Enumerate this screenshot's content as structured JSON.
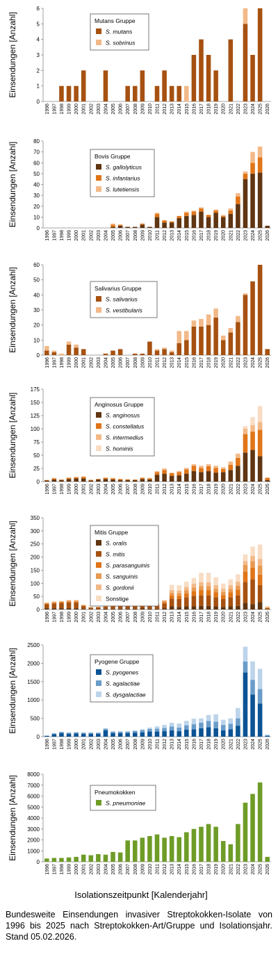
{
  "x_axis_label": "Isolationszeitpunkt [Kalenderjahr]",
  "caption": "Bundesweite Einsendungen invasiver Streptokokken-Isolate von 1996 bis 2025 nach Streptokokken-Art/Gruppe und Isolationsjahr. Stand 05.02.2026.",
  "chart_data": [
    {
      "type": "bar",
      "stacked": true,
      "ylabel": "Einsendungen [Anzahl]",
      "ylim": [
        0,
        6
      ],
      "yticks": [
        0,
        1,
        2,
        3,
        4,
        5,
        6
      ],
      "legend_title": "Mutans Gruppe",
      "legend_placement": "top-left",
      "categories": [
        "1996",
        "1997",
        "1998",
        "1999",
        "2000",
        "2001",
        "2002",
        "2003",
        "2004",
        "2005",
        "2006",
        "2007",
        "2008",
        "2009",
        "2010",
        "2011",
        "2012",
        "2013",
        "2014",
        "2015",
        "2016",
        "2017",
        "2018",
        "2019",
        "2020",
        "2021",
        "2022",
        "2023",
        "2024",
        "2025",
        "2026"
      ],
      "series": [
        {
          "name": "S. mutans",
          "color": "#a65111",
          "values": [
            0,
            0,
            1,
            1,
            1,
            2,
            0,
            0,
            2,
            0,
            0,
            1,
            1,
            2,
            0,
            1,
            2,
            1,
            1,
            0,
            3,
            4,
            3,
            2,
            0,
            4,
            0,
            5,
            3,
            6,
            0
          ]
        },
        {
          "name": "S. sobrinus",
          "color": "#f2b988",
          "values": [
            0,
            0,
            0,
            0,
            0,
            0,
            0,
            0,
            0,
            0,
            0,
            0,
            0,
            0,
            0,
            0,
            0,
            0,
            0,
            1,
            0,
            0,
            0,
            0,
            0,
            0,
            0,
            1,
            0,
            0,
            0
          ]
        }
      ]
    },
    {
      "type": "bar",
      "stacked": true,
      "ylabel": "Einsendungen [Anzahl]",
      "ylim": [
        0,
        80
      ],
      "yticks": [
        0,
        10,
        20,
        30,
        40,
        50,
        60,
        70,
        80
      ],
      "legend_title": "Bovis Gruppe",
      "legend_placement": "top-left",
      "categories": [
        "1996",
        "1997",
        "1998",
        "1999",
        "2000",
        "2001",
        "2002",
        "2003",
        "2004",
        "2005",
        "2006",
        "2007",
        "2008",
        "2009",
        "2010",
        "2011",
        "2012",
        "2013",
        "2014",
        "2015",
        "2016",
        "2017",
        "2018",
        "2019",
        "2020",
        "2021",
        "2022",
        "2023",
        "2024",
        "2025",
        "2026"
      ],
      "series": [
        {
          "name": "S. gallolyticus",
          "color": "#5f3512",
          "values": [
            0,
            0,
            0,
            0,
            0,
            0,
            0,
            0,
            0,
            1,
            2,
            1,
            1,
            3,
            1,
            10,
            5,
            5,
            9,
            11,
            12,
            15,
            10,
            14,
            10,
            13,
            22,
            45,
            50,
            51,
            2
          ]
        },
        {
          "name": "S. infantarius",
          "color": "#e07518",
          "values": [
            0,
            0,
            0,
            0,
            0,
            0,
            0,
            0,
            0,
            2,
            1,
            0,
            0,
            1,
            0,
            3,
            2,
            1,
            2,
            3,
            3,
            3,
            2,
            2,
            1,
            3,
            7,
            5,
            10,
            14,
            0
          ]
        },
        {
          "name": "S. lutetiensis",
          "color": "#f2b988",
          "values": [
            0,
            0,
            0,
            0,
            0,
            0,
            0,
            0,
            0,
            1,
            0,
            0,
            0,
            0,
            0,
            1,
            0,
            0,
            0,
            1,
            1,
            1,
            0,
            1,
            1,
            2,
            3,
            2,
            10,
            10,
            0
          ]
        }
      ]
    },
    {
      "type": "bar",
      "stacked": true,
      "ylabel": "Einsendungen [Anzahl]",
      "ylim": [
        0,
        60
      ],
      "yticks": [
        0,
        10,
        20,
        30,
        40,
        50,
        60
      ],
      "legend_title": "Salivarius Gruppe",
      "legend_placement": "top-left",
      "categories": [
        "1996",
        "1997",
        "1998",
        "1999",
        "2000",
        "2001",
        "2002",
        "2003",
        "2004",
        "2005",
        "2006",
        "2007",
        "2008",
        "2009",
        "2010",
        "2011",
        "2012",
        "2013",
        "2014",
        "2015",
        "2016",
        "2017",
        "2018",
        "2019",
        "2020",
        "2021",
        "2022",
        "2023",
        "2024",
        "2025",
        "2026"
      ],
      "series": [
        {
          "name": "S. salivarius",
          "color": "#a65111",
          "values": [
            3,
            2,
            0,
            7,
            5,
            4,
            0,
            0,
            1,
            3,
            4,
            0,
            1,
            1,
            9,
            3,
            4,
            2,
            8,
            10,
            19,
            19,
            20,
            25,
            10,
            15,
            22,
            40,
            49,
            60,
            4
          ]
        },
        {
          "name": "S. vestibularis",
          "color": "#f2b988",
          "values": [
            3,
            1,
            1,
            2,
            2,
            0,
            0,
            0,
            0,
            0,
            0,
            0,
            0,
            0,
            0,
            1,
            1,
            1,
            8,
            6,
            4,
            5,
            7,
            6,
            3,
            3,
            4,
            1,
            0,
            0,
            0
          ]
        }
      ]
    },
    {
      "type": "bar",
      "stacked": true,
      "ylabel": "Einsendungen [Anzahl]",
      "ylim": [
        0,
        175
      ],
      "yticks": [
        0,
        25,
        50,
        75,
        100,
        125,
        150,
        175
      ],
      "legend_title": "Anginosus Gruppe",
      "legend_placement": "top-left",
      "categories": [
        "1996",
        "1997",
        "1998",
        "1999",
        "2000",
        "2001",
        "2002",
        "2003",
        "2004",
        "2005",
        "2006",
        "2007",
        "2008",
        "2009",
        "2010",
        "2011",
        "2012",
        "2013",
        "2014",
        "2015",
        "2016",
        "2017",
        "2018",
        "2019",
        "2020",
        "2021",
        "2022",
        "2023",
        "2024",
        "2025",
        "2026"
      ],
      "series": [
        {
          "name": "S. anginosus",
          "color": "#5f3512",
          "values": [
            2,
            4,
            3,
            5,
            6,
            6,
            2,
            4,
            5,
            4,
            3,
            3,
            3,
            5,
            4,
            13,
            15,
            11,
            12,
            15,
            20,
            18,
            20,
            17,
            18,
            22,
            30,
            55,
            60,
            48,
            3
          ]
        },
        {
          "name": "S. constellatus",
          "color": "#e07518",
          "values": [
            1,
            2,
            1,
            2,
            2,
            3,
            1,
            1,
            2,
            2,
            2,
            1,
            1,
            2,
            2,
            5,
            7,
            5,
            6,
            8,
            10,
            8,
            9,
            9,
            6,
            10,
            15,
            35,
            35,
            50,
            4
          ]
        },
        {
          "name": "S. intermedius",
          "color": "#f2b988",
          "values": [
            0,
            1,
            0,
            1,
            1,
            1,
            1,
            0,
            1,
            1,
            0,
            1,
            0,
            1,
            1,
            2,
            3,
            1,
            2,
            3,
            3,
            4,
            4,
            4,
            3,
            6,
            8,
            10,
            12,
            15,
            1
          ]
        },
        {
          "name": "S. hominis",
          "color": "#f8dcc3",
          "values": [
            0,
            0,
            0,
            0,
            0,
            0,
            0,
            0,
            0,
            0,
            0,
            0,
            0,
            0,
            0,
            0,
            0,
            0,
            0,
            0,
            0,
            0,
            0,
            0,
            0,
            0,
            0,
            5,
            15,
            30,
            0
          ]
        }
      ]
    },
    {
      "type": "bar",
      "stacked": true,
      "ylabel": "Einsendungen [Anzahl]",
      "ylim": [
        0,
        350
      ],
      "yticks": [
        0,
        50,
        100,
        150,
        200,
        250,
        300,
        350
      ],
      "legend_title": "Mitis Gruppe",
      "legend_placement": "top-left",
      "categories": [
        "1996",
        "1997",
        "1998",
        "1999",
        "2000",
        "2001",
        "2002",
        "2003",
        "2004",
        "2005",
        "2006",
        "2007",
        "2008",
        "2009",
        "2010",
        "2011",
        "2012",
        "2013",
        "2014",
        "2015",
        "2016",
        "2017",
        "2018",
        "2019",
        "2020",
        "2021",
        "2022",
        "2023",
        "2024",
        "2025",
        "2026"
      ],
      "series": [
        {
          "name": "S. oralis",
          "color": "#5f3512",
          "values": [
            5,
            5,
            5,
            5,
            5,
            3,
            2,
            2,
            3,
            3,
            3,
            3,
            3,
            4,
            3,
            3,
            5,
            12,
            10,
            12,
            12,
            14,
            14,
            12,
            10,
            12,
            14,
            25,
            20,
            28,
            2
          ]
        },
        {
          "name": "S. mitis",
          "color": "#a65111",
          "values": [
            15,
            18,
            20,
            22,
            22,
            10,
            5,
            6,
            8,
            10,
            12,
            12,
            12,
            14,
            12,
            12,
            18,
            30,
            30,
            35,
            40,
            40,
            40,
            35,
            30,
            35,
            40,
            80,
            95,
            65,
            2
          ]
        },
        {
          "name": "S. parasanguinis",
          "color": "#e07518",
          "values": [
            3,
            3,
            3,
            4,
            4,
            2,
            1,
            1,
            2,
            2,
            2,
            2,
            2,
            3,
            2,
            3,
            5,
            12,
            12,
            15,
            18,
            20,
            20,
            18,
            15,
            18,
            22,
            40,
            45,
            40,
            2
          ]
        },
        {
          "name": "S. sanguinis",
          "color": "#e89a52",
          "values": [
            2,
            3,
            3,
            3,
            3,
            2,
            1,
            1,
            1,
            1,
            1,
            1,
            1,
            2,
            1,
            2,
            4,
            10,
            10,
            12,
            14,
            15,
            15,
            14,
            12,
            14,
            15,
            25,
            25,
            35,
            2
          ]
        },
        {
          "name": "S. gordonii",
          "color": "#f2b988",
          "values": [
            1,
            1,
            1,
            2,
            2,
            1,
            0,
            0,
            1,
            1,
            1,
            1,
            1,
            1,
            1,
            2,
            3,
            10,
            10,
            12,
            14,
            15,
            15,
            14,
            12,
            14,
            15,
            15,
            20,
            25,
            2
          ]
        },
        {
          "name": "Sonstige",
          "color": "#f8dcc3",
          "values": [
            0,
            0,
            0,
            0,
            0,
            0,
            0,
            0,
            0,
            0,
            0,
            0,
            0,
            0,
            0,
            0,
            2,
            20,
            20,
            20,
            22,
            36,
            36,
            30,
            20,
            22,
            28,
            25,
            35,
            55,
            3
          ]
        }
      ]
    },
    {
      "type": "bar",
      "stacked": true,
      "ylabel": "Einsendungen [Anzahl]",
      "ylim": [
        0,
        2500
      ],
      "yticks": [
        0,
        500,
        1000,
        1500,
        2000,
        2500
      ],
      "legend_title": "Pyogene Gruppe",
      "legend_placement": "top-left",
      "categories": [
        "1996",
        "1997",
        "1998",
        "1999",
        "2000",
        "2001",
        "2002",
        "2003",
        "2004",
        "2005",
        "2006",
        "2007",
        "2008",
        "2009",
        "2010",
        "2011",
        "2012",
        "2013",
        "2014",
        "2015",
        "2016",
        "2017",
        "2018",
        "2019",
        "2020",
        "2021",
        "2022",
        "2023",
        "2024",
        "2025",
        "2026"
      ],
      "series": [
        {
          "name": "S. pyogenes",
          "color": "#0b5394",
          "values": [
            20,
            70,
            100,
            80,
            90,
            80,
            80,
            80,
            170,
            100,
            100,
            100,
            110,
            120,
            140,
            140,
            150,
            170,
            150,
            190,
            200,
            230,
            260,
            230,
            170,
            200,
            300,
            1750,
            1150,
            900,
            20
          ]
        },
        {
          "name": "S. agalactiae",
          "color": "#6a9cc9",
          "values": [
            10,
            20,
            30,
            30,
            30,
            30,
            30,
            30,
            50,
            40,
            40,
            40,
            50,
            60,
            70,
            80,
            90,
            110,
            100,
            120,
            140,
            150,
            170,
            180,
            150,
            150,
            200,
            300,
            400,
            400,
            20
          ]
        },
        {
          "name": "S. dysgalactiae",
          "color": "#bcd4ea",
          "values": [
            0,
            0,
            0,
            0,
            0,
            0,
            0,
            0,
            0,
            0,
            0,
            0,
            0,
            20,
            40,
            60,
            80,
            100,
            110,
            120,
            150,
            120,
            160,
            200,
            140,
            150,
            280,
            400,
            500,
            550,
            20
          ]
        }
      ]
    },
    {
      "type": "bar",
      "stacked": true,
      "ylabel": "Einsendungen [Anzahl]",
      "ylim": [
        0,
        8000
      ],
      "yticks": [
        0,
        1000,
        2000,
        3000,
        4000,
        5000,
        6000,
        7000,
        8000
      ],
      "legend_title": "Pneumokokken",
      "legend_placement": "top-left",
      "categories": [
        "1996",
        "1997",
        "1998",
        "1999",
        "2000",
        "2001",
        "2002",
        "2003",
        "2004",
        "2005",
        "2006",
        "2007",
        "2008",
        "2009",
        "2010",
        "2011",
        "2012",
        "2013",
        "2014",
        "2015",
        "2016",
        "2017",
        "2018",
        "2019",
        "2020",
        "2021",
        "2022",
        "2023",
        "2024",
        "2025",
        "2026"
      ],
      "series": [
        {
          "name": "S. pneumoniae",
          "color": "#6e9c27",
          "values": [
            300,
            350,
            350,
            400,
            450,
            650,
            600,
            700,
            650,
            900,
            850,
            1950,
            1950,
            2200,
            2350,
            2500,
            2200,
            2350,
            2250,
            2700,
            3000,
            3200,
            3450,
            3200,
            1900,
            1600,
            3450,
            5400,
            6200,
            7250,
            450
          ]
        }
      ]
    }
  ]
}
